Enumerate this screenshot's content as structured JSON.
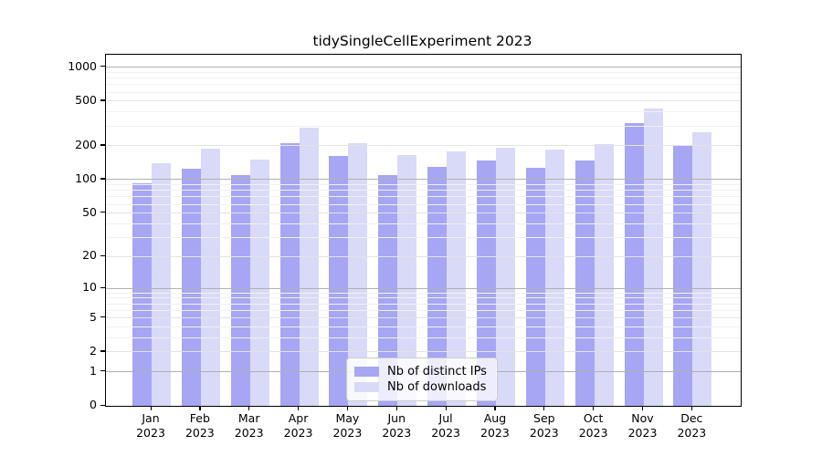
{
  "title": "tidySingleCellExperiment 2023",
  "chart_data": {
    "type": "bar",
    "title": "tidySingleCellExperiment 2023",
    "categories": [
      "Jan",
      "Feb",
      "Mar",
      "Apr",
      "May",
      "Jun",
      "Jul",
      "Aug",
      "Sep",
      "Oct",
      "Nov",
      "Dec"
    ],
    "year_label": "2023",
    "series": [
      {
        "name": "Nb of distinct IPs",
        "color": "#a6a6f4",
        "values": [
          93,
          124,
          109,
          210,
          164,
          110,
          131,
          148,
          127,
          148,
          316,
          200
        ]
      },
      {
        "name": "Nb of downloads",
        "color": "#d9d9f8",
        "values": [
          141,
          188,
          150,
          292,
          210,
          165,
          180,
          194,
          185,
          209,
          430,
          264
        ]
      }
    ],
    "y_scale": "log1p",
    "ylim": [
      0,
      1290
    ],
    "y_ticks": [
      0,
      1,
      2,
      5,
      10,
      20,
      50,
      100,
      200,
      500,
      1000
    ],
    "y_gridlines_major": [
      1,
      10,
      100,
      1000
    ],
    "y_gridlines_mid": [
      2,
      5,
      20,
      50,
      200,
      500
    ],
    "y_gridlines_minor": [
      3,
      4,
      6,
      7,
      8,
      9,
      30,
      40,
      60,
      70,
      80,
      90,
      300,
      400,
      600,
      700,
      800,
      900
    ],
    "grid": true,
    "legend_position": "lower center",
    "axis_color": "#000000",
    "grid_major_color": "#b0b0b0",
    "grid_mid_color": "#e3e3e3",
    "grid_minor_color": "#f1f1f1"
  }
}
